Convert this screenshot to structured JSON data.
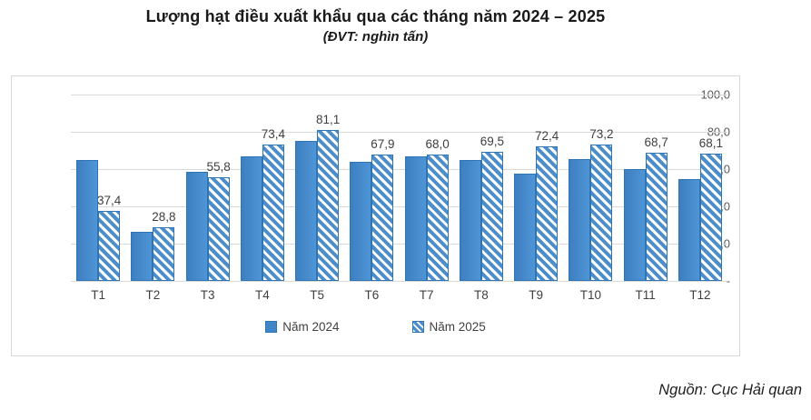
{
  "chart_data": {
    "type": "bar",
    "title": "Lượng hạt điều xuất khẩu qua các tháng năm 2024 – 2025",
    "subtitle": "(ĐVT: nghìn tấn)",
    "categories": [
      "T1",
      "T2",
      "T3",
      "T4",
      "T5",
      "T6",
      "T7",
      "T8",
      "T9",
      "T10",
      "T11",
      "T12"
    ],
    "series": [
      {
        "name": "Năm 2024",
        "style": "solid",
        "values": [
          65,
          26.5,
          58.5,
          67,
          75,
          64,
          67,
          65,
          57.5,
          65.5,
          60,
          54.5
        ],
        "labels": []
      },
      {
        "name": "Năm 2025",
        "style": "hatched",
        "values": [
          37.4,
          28.8,
          55.8,
          73.4,
          81.1,
          67.9,
          68.0,
          69.5,
          72.4,
          73.2,
          68.7,
          68.1
        ],
        "labels": [
          "37,4",
          "28,8",
          "55,8",
          "73,4",
          "81,1",
          "67,9",
          "68,0",
          "69,5",
          "72,4",
          "73,2",
          "68,7",
          "68,1"
        ]
      }
    ],
    "ylim": [
      0,
      100
    ],
    "ytick_step": 20,
    "ytick_labels_top_to_bottom": [
      "100,0",
      "80,0",
      "60,0",
      "40,0",
      "20,0",
      "-"
    ],
    "grid": true,
    "legend_position": "bottom",
    "source": "Nguồn: Cục Hải quan"
  },
  "colors": {
    "bar_2024_fill": "#3f86c6",
    "bar_border": "#2e75b6",
    "hatch_stripe": "#4c8dcb",
    "gridline": "#d9d9d9",
    "chart_border": "#d8d8d8",
    "label_text": "#3f3f3f",
    "axis_text": "#595959"
  }
}
